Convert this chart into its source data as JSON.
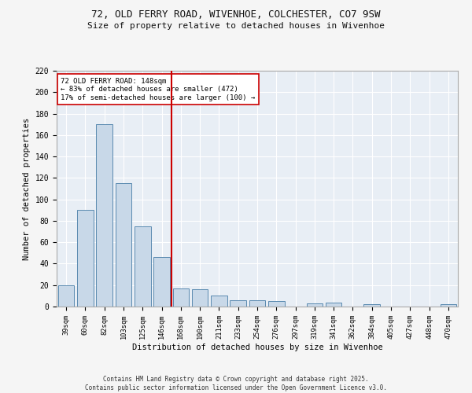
{
  "title_line1": "72, OLD FERRY ROAD, WIVENHOE, COLCHESTER, CO7 9SW",
  "title_line2": "Size of property relative to detached houses in Wivenhoe",
  "xlabel": "Distribution of detached houses by size in Wivenhoe",
  "ylabel": "Number of detached properties",
  "bar_labels": [
    "39sqm",
    "60sqm",
    "82sqm",
    "103sqm",
    "125sqm",
    "146sqm",
    "168sqm",
    "190sqm",
    "211sqm",
    "233sqm",
    "254sqm",
    "276sqm",
    "297sqm",
    "319sqm",
    "341sqm",
    "362sqm",
    "384sqm",
    "405sqm",
    "427sqm",
    "448sqm",
    "470sqm"
  ],
  "bar_values": [
    20,
    90,
    170,
    115,
    75,
    46,
    17,
    16,
    10,
    6,
    6,
    5,
    0,
    3,
    4,
    0,
    2,
    0,
    0,
    0,
    2
  ],
  "bar_color": "#c8d8e8",
  "bar_edge_color": "#5a8ab0",
  "vline_x_index": 5.5,
  "vline_color": "#cc0000",
  "annotation_text": "72 OLD FERRY ROAD: 148sqm\n← 83% of detached houses are smaller (472)\n17% of semi-detached houses are larger (100) →",
  "annotation_box_color": "#ffffff",
  "annotation_box_edge": "#cc0000",
  "ylim": [
    0,
    220
  ],
  "yticks": [
    0,
    20,
    40,
    60,
    80,
    100,
    120,
    140,
    160,
    180,
    200,
    220
  ],
  "background_color": "#e8eef5",
  "grid_color": "#ffffff",
  "footer_line1": "Contains HM Land Registry data © Crown copyright and database right 2025.",
  "footer_line2": "Contains public sector information licensed under the Open Government Licence v3.0."
}
